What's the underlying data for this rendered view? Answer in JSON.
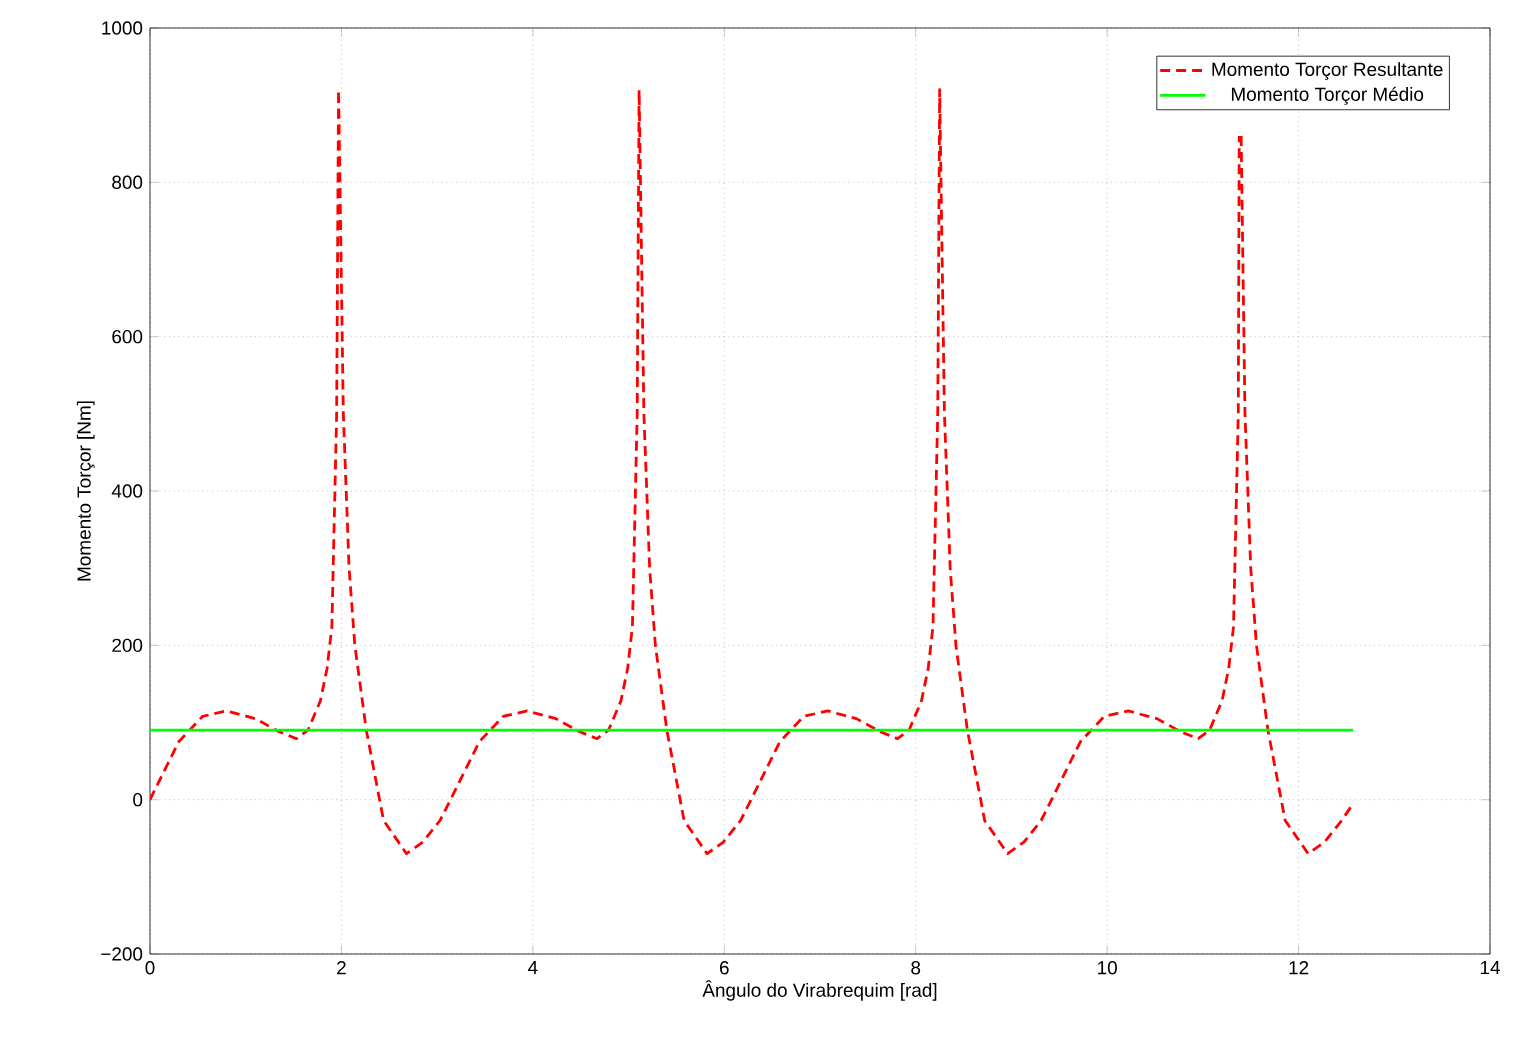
{
  "chart_data": {
    "type": "line",
    "xlabel": "Ângulo do Virabrequim [rad]",
    "ylabel": "Momento Torçor [Nm]",
    "xlim": [
      0,
      14
    ],
    "xticks": [
      0,
      2,
      4,
      6,
      8,
      10,
      12,
      14
    ],
    "ylim": [
      -200,
      1000
    ],
    "yticks": [
      {
        "value": -200,
        "label": "−200"
      },
      0,
      200,
      400,
      600,
      800,
      1000
    ],
    "grid": true,
    "legend": "top right",
    "marker": "none",
    "series": [
      {
        "name": "Momento Torçor Resultante",
        "color": "#ff0000",
        "line_style": "dashed",
        "x": [
          0,
          0.1,
          0.3,
          0.55,
          0.8,
          1.1,
          1.35,
          1.53,
          1.65,
          1.78,
          1.85,
          1.9,
          1.95,
          1.97,
          2.02,
          2.08,
          2.14,
          2.26,
          2.44,
          2.68,
          2.85,
          3.03,
          3.14,
          3.24,
          3.44,
          3.69,
          3.94,
          4.24,
          4.49,
          4.67,
          4.79,
          4.92,
          4.99,
          5.04,
          5.09,
          5.11,
          5.16,
          5.22,
          5.28,
          5.4,
          5.58,
          5.82,
          5.99,
          6.17,
          6.28,
          6.38,
          6.58,
          6.83,
          7.08,
          7.38,
          7.63,
          7.81,
          7.93,
          8.06,
          8.13,
          8.18,
          8.23,
          8.25,
          8.3,
          8.36,
          8.42,
          8.54,
          8.72,
          8.96,
          9.13,
          9.31,
          9.42,
          9.52,
          9.72,
          9.97,
          10.22,
          10.52,
          10.77,
          10.95,
          11.07,
          11.2,
          11.27,
          11.32,
          11.37,
          11.38,
          11.39,
          11.4,
          11.44,
          11.5,
          11.56,
          11.68,
          11.86,
          12.1,
          12.27,
          12.45,
          12.57
        ],
        "values": [
          0,
          25,
          75,
          108,
          115,
          105,
          88,
          79,
          90,
          128,
          170,
          224,
          500,
          920,
          500,
          300,
          200,
          90,
          -27,
          -70,
          -55,
          -27,
          0,
          25,
          75,
          108,
          115,
          105,
          88,
          79,
          90,
          128,
          170,
          224,
          500,
          920,
          500,
          300,
          200,
          90,
          -27,
          -70,
          -55,
          -27,
          0,
          25,
          75,
          108,
          115,
          105,
          88,
          79,
          90,
          128,
          170,
          224,
          500,
          920,
          500,
          300,
          200,
          90,
          -27,
          -70,
          -55,
          -27,
          0,
          25,
          75,
          108,
          115,
          105,
          88,
          79,
          90,
          128,
          170,
          224,
          500,
          860,
          null,
          860,
          500,
          300,
          200,
          90,
          -27,
          -70,
          -55,
          -27,
          -5
        ]
      },
      {
        "name": "Momento Torçor Médio",
        "color": "#00ff00",
        "line_style": "solid",
        "x": [
          0,
          12.57
        ],
        "values": [
          90,
          90
        ]
      }
    ]
  }
}
